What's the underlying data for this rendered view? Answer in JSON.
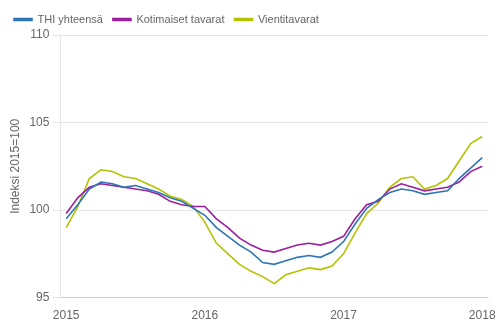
{
  "chart_data": {
    "type": "line",
    "y_label": "Indeksi 2015=100",
    "categories": [
      "2015",
      null,
      null,
      null,
      null,
      null,
      null,
      null,
      null,
      null,
      null,
      null,
      "2016",
      null,
      null,
      null,
      null,
      null,
      null,
      null,
      null,
      null,
      null,
      null,
      "2017",
      null,
      null,
      null,
      null,
      null,
      null,
      null,
      null,
      null,
      null,
      null,
      "2018"
    ],
    "series": [
      {
        "name": "THI yhteensä",
        "color": "#2e75b6",
        "values": [
          99.5,
          100.3,
          101.2,
          101.6,
          101.5,
          101.3,
          101.4,
          101.2,
          101.0,
          100.7,
          100.5,
          100.1,
          99.7,
          99.0,
          98.5,
          98.0,
          97.6,
          97.0,
          96.9,
          97.1,
          97.3,
          97.4,
          97.3,
          97.6,
          98.2,
          99.2,
          100.1,
          100.6,
          101.0,
          101.2,
          101.1,
          100.9,
          101.0,
          101.1,
          101.8,
          102.4,
          103.0
        ]
      },
      {
        "name": "Kotimaiset tavarat",
        "color": "#9b1f9e",
        "values": [
          99.8,
          100.7,
          101.3,
          101.5,
          101.4,
          101.3,
          101.2,
          101.1,
          100.9,
          100.5,
          100.3,
          100.2,
          100.2,
          99.5,
          99.0,
          98.4,
          98.0,
          97.7,
          97.6,
          97.8,
          98.0,
          98.1,
          98.0,
          98.2,
          98.5,
          99.5,
          100.3,
          100.5,
          101.2,
          101.5,
          101.3,
          101.1,
          101.2,
          101.3,
          101.6,
          102.2,
          102.5
        ]
      },
      {
        "name": "Vientitavarat",
        "color": "#b5c200",
        "values": [
          99.0,
          100.2,
          101.8,
          102.3,
          102.2,
          101.9,
          101.8,
          101.5,
          101.2,
          100.8,
          100.6,
          100.2,
          99.3,
          98.1,
          97.5,
          96.9,
          96.5,
          96.2,
          95.8,
          96.3,
          96.5,
          96.7,
          96.6,
          96.8,
          97.5,
          98.7,
          99.8,
          100.4,
          101.3,
          101.8,
          101.9,
          101.2,
          101.4,
          101.8,
          102.8,
          103.8,
          104.2
        ]
      }
    ],
    "ylim": [
      95,
      110
    ],
    "yticks": [
      95,
      100,
      105,
      110
    ],
    "grid": true,
    "legend": "upper left"
  }
}
